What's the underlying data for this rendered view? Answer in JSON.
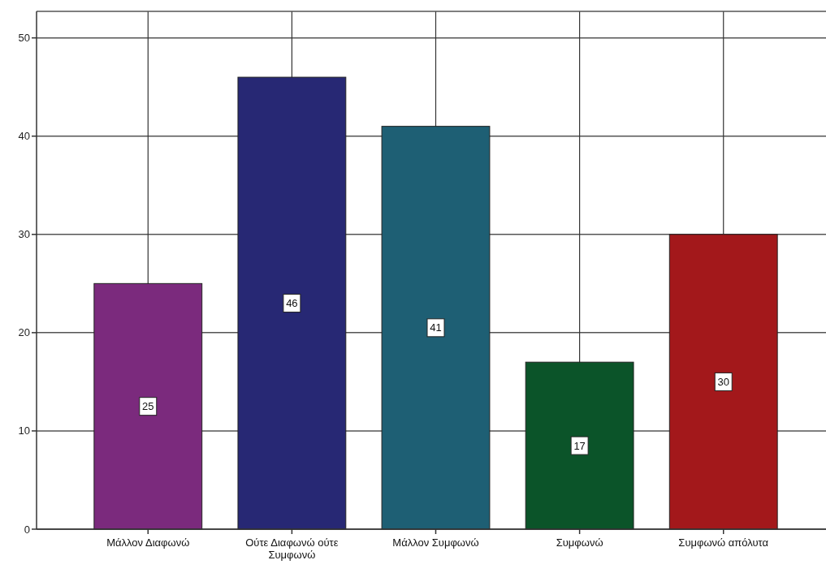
{
  "chart_data": {
    "type": "bar",
    "categories": [
      "Μάλλον Διαφωνώ",
      "Ούτε Διαφωνώ ούτε Συμφωνώ",
      "Μάλλον Συμφωνώ",
      "Συμφωνώ",
      "Συμφωνώ απόλυτα"
    ],
    "values": [
      25,
      46,
      41,
      17,
      30
    ],
    "colors": [
      "#7b2a7d",
      "#272874",
      "#1e5f74",
      "#0b5429",
      "#a3181b"
    ],
    "ylim": [
      0,
      52.7
    ],
    "yticks": [
      0,
      10,
      20,
      30,
      40,
      50
    ],
    "grid": true,
    "data_labels": true
  }
}
